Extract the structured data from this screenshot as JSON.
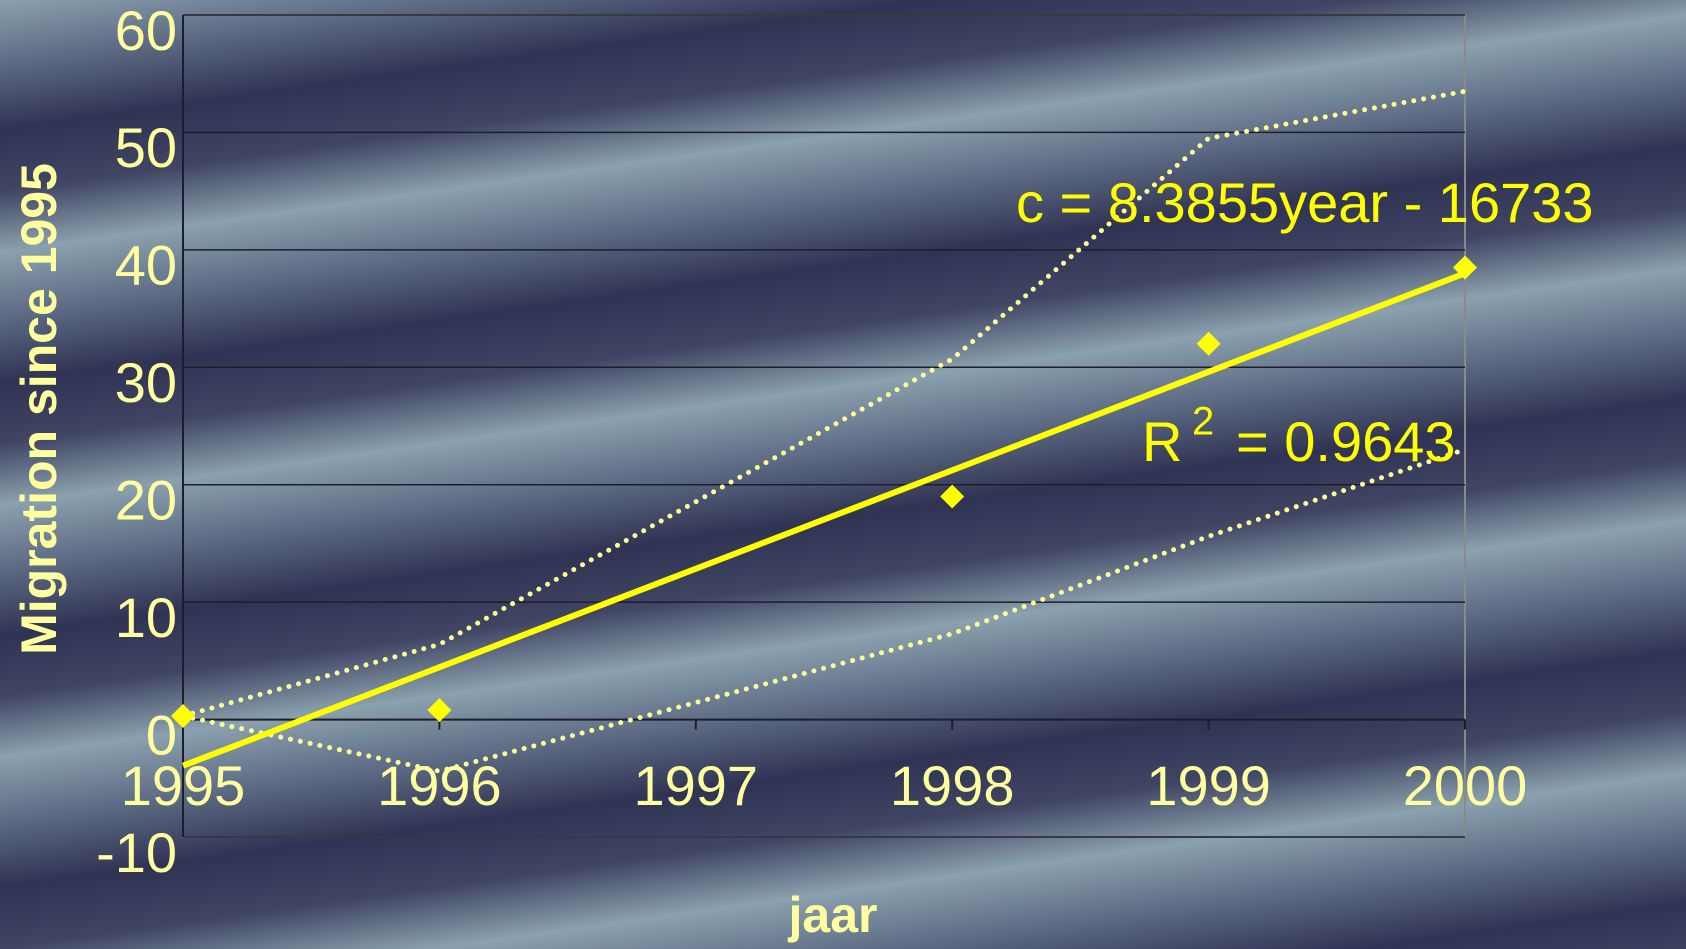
{
  "chart_data": {
    "type": "scatter",
    "x_label": "jaar",
    "y_label": "Migration since 1995",
    "x": [
      1995,
      1996,
      1998,
      1999,
      2000
    ],
    "values": [
      0.3,
      0.8,
      19,
      32,
      38.5
    ],
    "color": "#ffff00",
    "xlim": [
      1995,
      2000
    ],
    "ylim": [
      -10,
      60
    ],
    "xticks": [
      1995,
      1996,
      1997,
      1998,
      1999,
      2000
    ],
    "yticks": [
      -10,
      0,
      10,
      20,
      30,
      40,
      50,
      60
    ],
    "grid": true,
    "trendline": {
      "x": [
        1995,
        2000
      ],
      "values": [
        -3.93,
        38.0
      ],
      "color": "#ffff00"
    },
    "bands": [
      {
        "x": [
          1995,
          1996,
          1998,
          1999,
          2000
        ],
        "values": [
          0.3,
          6.4,
          30.7,
          49.5,
          53.5
        ],
        "color": "#ffff99"
      },
      {
        "x": [
          1995,
          1996,
          1998,
          1999,
          2000
        ],
        "values": [
          0.3,
          -4.4,
          7.3,
          15.6,
          23
        ],
        "color": "#ffff99"
      }
    ],
    "equation": "c = 8.3855year - 16733",
    "r_squared": [
      "R",
      "2",
      "= 0.9643"
    ]
  }
}
